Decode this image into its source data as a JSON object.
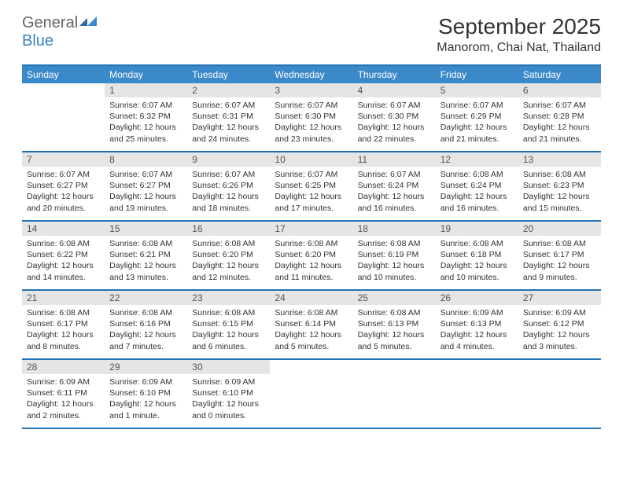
{
  "brand": {
    "general": "General",
    "blue": "Blue"
  },
  "colors": {
    "header_bg": "#3b89c9",
    "border": "#2273b5",
    "daynum_bg": "#e5e5e5",
    "text": "#333333",
    "logo_gray": "#666666",
    "logo_blue": "#3b82c4"
  },
  "title": "September 2025",
  "location": "Manorom, Chai Nat, Thailand",
  "day_headers": [
    "Sunday",
    "Monday",
    "Tuesday",
    "Wednesday",
    "Thursday",
    "Friday",
    "Saturday"
  ],
  "weeks": [
    [
      {
        "n": "",
        "sr": "",
        "ss": "",
        "dl": ""
      },
      {
        "n": "1",
        "sr": "Sunrise: 6:07 AM",
        "ss": "Sunset: 6:32 PM",
        "dl": "Daylight: 12 hours and 25 minutes."
      },
      {
        "n": "2",
        "sr": "Sunrise: 6:07 AM",
        "ss": "Sunset: 6:31 PM",
        "dl": "Daylight: 12 hours and 24 minutes."
      },
      {
        "n": "3",
        "sr": "Sunrise: 6:07 AM",
        "ss": "Sunset: 6:30 PM",
        "dl": "Daylight: 12 hours and 23 minutes."
      },
      {
        "n": "4",
        "sr": "Sunrise: 6:07 AM",
        "ss": "Sunset: 6:30 PM",
        "dl": "Daylight: 12 hours and 22 minutes."
      },
      {
        "n": "5",
        "sr": "Sunrise: 6:07 AM",
        "ss": "Sunset: 6:29 PM",
        "dl": "Daylight: 12 hours and 21 minutes."
      },
      {
        "n": "6",
        "sr": "Sunrise: 6:07 AM",
        "ss": "Sunset: 6:28 PM",
        "dl": "Daylight: 12 hours and 21 minutes."
      }
    ],
    [
      {
        "n": "7",
        "sr": "Sunrise: 6:07 AM",
        "ss": "Sunset: 6:27 PM",
        "dl": "Daylight: 12 hours and 20 minutes."
      },
      {
        "n": "8",
        "sr": "Sunrise: 6:07 AM",
        "ss": "Sunset: 6:27 PM",
        "dl": "Daylight: 12 hours and 19 minutes."
      },
      {
        "n": "9",
        "sr": "Sunrise: 6:07 AM",
        "ss": "Sunset: 6:26 PM",
        "dl": "Daylight: 12 hours and 18 minutes."
      },
      {
        "n": "10",
        "sr": "Sunrise: 6:07 AM",
        "ss": "Sunset: 6:25 PM",
        "dl": "Daylight: 12 hours and 17 minutes."
      },
      {
        "n": "11",
        "sr": "Sunrise: 6:07 AM",
        "ss": "Sunset: 6:24 PM",
        "dl": "Daylight: 12 hours and 16 minutes."
      },
      {
        "n": "12",
        "sr": "Sunrise: 6:08 AM",
        "ss": "Sunset: 6:24 PM",
        "dl": "Daylight: 12 hours and 16 minutes."
      },
      {
        "n": "13",
        "sr": "Sunrise: 6:08 AM",
        "ss": "Sunset: 6:23 PM",
        "dl": "Daylight: 12 hours and 15 minutes."
      }
    ],
    [
      {
        "n": "14",
        "sr": "Sunrise: 6:08 AM",
        "ss": "Sunset: 6:22 PM",
        "dl": "Daylight: 12 hours and 14 minutes."
      },
      {
        "n": "15",
        "sr": "Sunrise: 6:08 AM",
        "ss": "Sunset: 6:21 PM",
        "dl": "Daylight: 12 hours and 13 minutes."
      },
      {
        "n": "16",
        "sr": "Sunrise: 6:08 AM",
        "ss": "Sunset: 6:20 PM",
        "dl": "Daylight: 12 hours and 12 minutes."
      },
      {
        "n": "17",
        "sr": "Sunrise: 6:08 AM",
        "ss": "Sunset: 6:20 PM",
        "dl": "Daylight: 12 hours and 11 minutes."
      },
      {
        "n": "18",
        "sr": "Sunrise: 6:08 AM",
        "ss": "Sunset: 6:19 PM",
        "dl": "Daylight: 12 hours and 10 minutes."
      },
      {
        "n": "19",
        "sr": "Sunrise: 6:08 AM",
        "ss": "Sunset: 6:18 PM",
        "dl": "Daylight: 12 hours and 10 minutes."
      },
      {
        "n": "20",
        "sr": "Sunrise: 6:08 AM",
        "ss": "Sunset: 6:17 PM",
        "dl": "Daylight: 12 hours and 9 minutes."
      }
    ],
    [
      {
        "n": "21",
        "sr": "Sunrise: 6:08 AM",
        "ss": "Sunset: 6:17 PM",
        "dl": "Daylight: 12 hours and 8 minutes."
      },
      {
        "n": "22",
        "sr": "Sunrise: 6:08 AM",
        "ss": "Sunset: 6:16 PM",
        "dl": "Daylight: 12 hours and 7 minutes."
      },
      {
        "n": "23",
        "sr": "Sunrise: 6:08 AM",
        "ss": "Sunset: 6:15 PM",
        "dl": "Daylight: 12 hours and 6 minutes."
      },
      {
        "n": "24",
        "sr": "Sunrise: 6:08 AM",
        "ss": "Sunset: 6:14 PM",
        "dl": "Daylight: 12 hours and 5 minutes."
      },
      {
        "n": "25",
        "sr": "Sunrise: 6:08 AM",
        "ss": "Sunset: 6:13 PM",
        "dl": "Daylight: 12 hours and 5 minutes."
      },
      {
        "n": "26",
        "sr": "Sunrise: 6:09 AM",
        "ss": "Sunset: 6:13 PM",
        "dl": "Daylight: 12 hours and 4 minutes."
      },
      {
        "n": "27",
        "sr": "Sunrise: 6:09 AM",
        "ss": "Sunset: 6:12 PM",
        "dl": "Daylight: 12 hours and 3 minutes."
      }
    ],
    [
      {
        "n": "28",
        "sr": "Sunrise: 6:09 AM",
        "ss": "Sunset: 6:11 PM",
        "dl": "Daylight: 12 hours and 2 minutes."
      },
      {
        "n": "29",
        "sr": "Sunrise: 6:09 AM",
        "ss": "Sunset: 6:10 PM",
        "dl": "Daylight: 12 hours and 1 minute."
      },
      {
        "n": "30",
        "sr": "Sunrise: 6:09 AM",
        "ss": "Sunset: 6:10 PM",
        "dl": "Daylight: 12 hours and 0 minutes."
      },
      {
        "n": "",
        "sr": "",
        "ss": "",
        "dl": ""
      },
      {
        "n": "",
        "sr": "",
        "ss": "",
        "dl": ""
      },
      {
        "n": "",
        "sr": "",
        "ss": "",
        "dl": ""
      },
      {
        "n": "",
        "sr": "",
        "ss": "",
        "dl": ""
      }
    ]
  ]
}
